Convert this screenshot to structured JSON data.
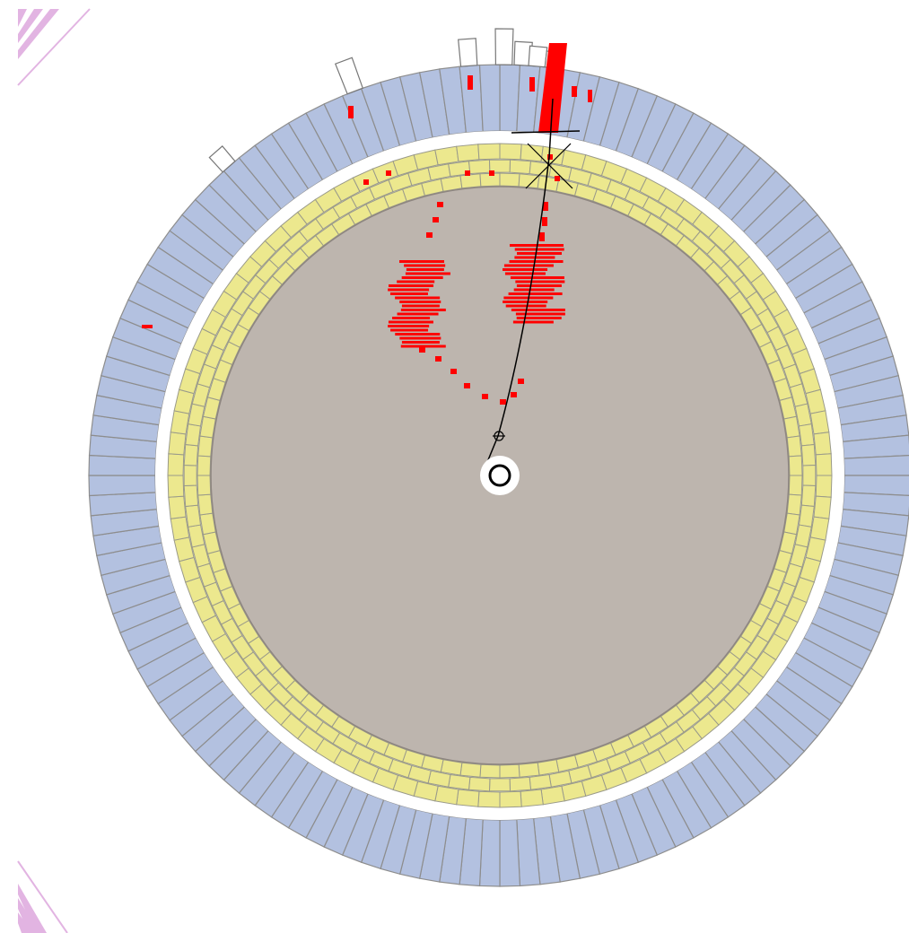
{
  "colors": {
    "background": "#ffffff",
    "outer_calorimeter_fill": "#b3c1e0",
    "outer_calorimeter_stroke": "#8d8d8d",
    "inner_calorimeter_fill": "#ece88e",
    "inner_calorimeter_stroke": "#9a9a8a",
    "tracker_fill": "#bdb5ae",
    "tracker_stroke": "#8e8680",
    "hit_color": "#ff0000",
    "track_color": "#000000",
    "corner_stripe": "#e2b4e2"
  },
  "detector": {
    "outer_calorimeter_cells": 128,
    "inner_calorimeter_rows": 3,
    "inner_calorimeter_cells_per_row": 96
  },
  "event": {
    "vertex_marker": "ring",
    "electron_track": "reconstructed-track",
    "tower_energy_levels": [
      0.35,
      0.55,
      1.0,
      0.45,
      0.35,
      0.3,
      0.25
    ]
  }
}
